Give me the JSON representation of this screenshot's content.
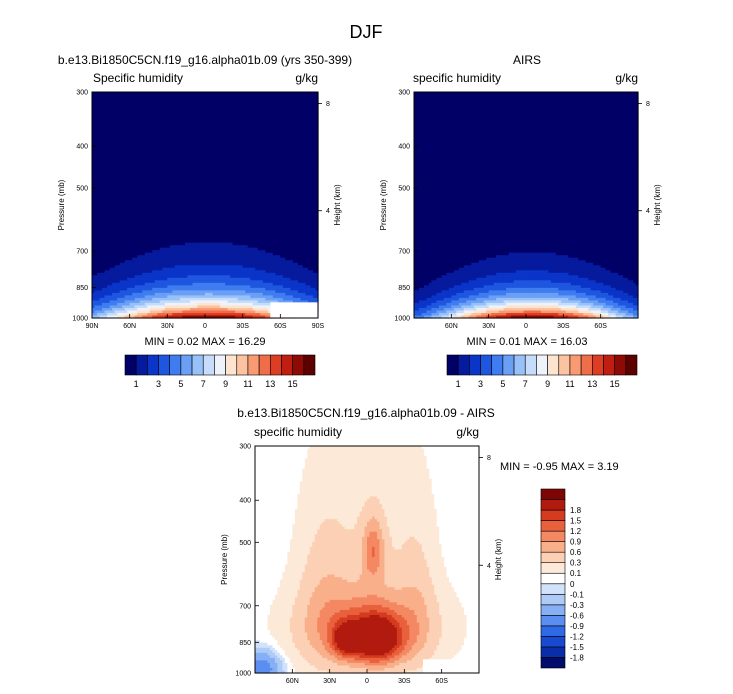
{
  "figure_title": "DJF",
  "panel_left": {
    "title": "b.e13.Bi1850C5CN.f19_g16.alpha01b.09 (yrs 350-399)",
    "left_label": "Specific humidity",
    "right_label": "g/kg",
    "stats": "MIN =  0.02  MAX = 16.29"
  },
  "panel_right": {
    "title": "AIRS",
    "left_label": "specific humidity",
    "right_label": "g/kg",
    "stats": "MIN =  0.01  MAX = 16.03"
  },
  "panel_bottom": {
    "title": "b.e13.Bi1850C5CN.f19_g16.alpha01b.09 - AIRS",
    "left_label": "specific humidity",
    "right_label": "g/kg",
    "stats": "MIN =  -0.95  MAX =  3.19"
  },
  "colors": {
    "abs_scale": [
      "#000066",
      "#061a9e",
      "#0a35c8",
      "#1f56e0",
      "#3f7cf0",
      "#6a9ff5",
      "#98c1f9",
      "#c6dcfb",
      "#eef3fb",
      "#fde4cf",
      "#fcc3a0",
      "#f99a72",
      "#ef6d48",
      "#dd3d22",
      "#bf1e10",
      "#8f0a05",
      "#5c0000"
    ],
    "diff_scale": [
      "#010c6b",
      "#0a2daa",
      "#1849d0",
      "#2f6ae6",
      "#5a8ef0",
      "#86aff5",
      "#aecbf8",
      "#d2e2fb",
      "#ffffff",
      "#fde9d8",
      "#fcd0b4",
      "#f9b08a",
      "#f48862",
      "#e9603c",
      "#d43b1f",
      "#b11a0e",
      "#7d0504"
    ]
  },
  "chart_data": [
    {
      "type": "heatmap",
      "name": "model",
      "title": "b.e13.Bi1850C5CN.f19_g16.alpha01b.09 (yrs 350-399)",
      "variable": "Specific humidity",
      "units": "g/kg",
      "ylabel": "Pressure (mb)",
      "y2label": "Height (km)",
      "x_ticks": [
        "90N",
        "60N",
        "30N",
        "0",
        "30S",
        "60S",
        "90S"
      ],
      "x_tick_values": [
        90,
        60,
        30,
        0,
        -30,
        -60,
        -90
      ],
      "xlim": [
        90,
        -90
      ],
      "y_ticks": [
        "300",
        "400",
        "500",
        "700",
        "850",
        "1000"
      ],
      "y_tick_values": [
        300,
        400,
        500,
        700,
        850,
        1000
      ],
      "ylim": [
        300,
        1000
      ],
      "height_ticks": [
        "8",
        "4"
      ],
      "height_tick_values": [
        8,
        4
      ],
      "colorbar_levels": [
        1,
        2,
        3,
        4,
        5,
        6,
        7,
        8,
        9,
        10,
        11,
        12,
        13,
        14,
        15,
        16
      ],
      "colorbar_labels": [
        "1",
        "3",
        "5",
        "7",
        "9",
        "11",
        "13",
        "15"
      ],
      "min": 0.02,
      "max": 16.29,
      "peak_lat": -3,
      "decay_p": 118,
      "width_lat": 32,
      "width_grow": 1.2,
      "missing_box": {
        "lat": [
          -52,
          -90
        ],
        "p": [
          920,
          1000
        ]
      }
    },
    {
      "type": "heatmap",
      "name": "obs",
      "title": "AIRS",
      "variable": "specific humidity",
      "units": "g/kg",
      "ylabel": "Pressure (mb)",
      "y2label": "Height (km)",
      "x_ticks": [
        "60N",
        "30N",
        "0",
        "30S",
        "60S"
      ],
      "x_tick_values": [
        60,
        30,
        0,
        -30,
        -60
      ],
      "xlim": [
        90,
        -90
      ],
      "y_ticks": [
        "300",
        "400",
        "500",
        "700",
        "850",
        "1000"
      ],
      "y_tick_values": [
        300,
        400,
        500,
        700,
        850,
        1000
      ],
      "ylim": [
        300,
        1000
      ],
      "height_ticks": [
        "8",
        "4"
      ],
      "height_tick_values": [
        8,
        4
      ],
      "colorbar_levels": [
        1,
        2,
        3,
        4,
        5,
        6,
        7,
        8,
        9,
        10,
        11,
        12,
        13,
        14,
        15,
        16
      ],
      "colorbar_labels": [
        "1",
        "3",
        "5",
        "7",
        "9",
        "11",
        "13",
        "15"
      ],
      "min": 0.01,
      "max": 16.03,
      "peak_lat": -5,
      "decay_p": 105,
      "width_lat": 30,
      "width_grow": 1.0,
      "missing_box": null
    },
    {
      "type": "heatmap",
      "name": "difference",
      "title": "b.e13.Bi1850C5CN.f19_g16.alpha01b.09 - AIRS",
      "variable": "specific humidity",
      "units": "g/kg",
      "ylabel": "Pressure (mb)",
      "y2label": "Height (km)",
      "x_ticks": [
        "60N",
        "30N",
        "0",
        "30S",
        "60S"
      ],
      "x_tick_values": [
        60,
        30,
        0,
        -30,
        -60
      ],
      "xlim": [
        90,
        -90
      ],
      "y_ticks": [
        "300",
        "400",
        "500",
        "700",
        "850",
        "1000"
      ],
      "y_tick_values": [
        300,
        400,
        500,
        700,
        850,
        1000
      ],
      "ylim": [
        300,
        1000
      ],
      "height_ticks": [
        "8",
        "4"
      ],
      "height_tick_values": [
        8,
        4
      ],
      "colorbar_levels": [
        -1.8,
        -1.5,
        -1.2,
        -0.9,
        -0.6,
        -0.3,
        -0.1,
        0,
        0.1,
        0.3,
        0.6,
        0.9,
        1.2,
        1.5,
        1.8
      ],
      "colorbar_labels": [
        "-1.8",
        "-1.5",
        "-1.2",
        "-0.9",
        "-0.6",
        "-0.3",
        "-0.1",
        "0",
        "0.1",
        "0.3",
        "0.6",
        "0.9",
        "1.2",
        "1.5",
        "1.8"
      ],
      "min": -0.95,
      "max": 3.19,
      "missing_box": {
        "lat": [
          -45,
          -90
        ],
        "p": [
          930,
          1000
        ]
      },
      "features": [
        {
          "lat": -8,
          "p": 840,
          "amp": 1.9,
          "wlat": 14,
          "wp": 75
        },
        {
          "lat": 17,
          "p": 840,
          "amp": 1.3,
          "wlat": 8,
          "wp": 55
        },
        {
          "lat": -5,
          "p": 520,
          "amp": 0.9,
          "wlat": 6,
          "wp": 60
        },
        {
          "lat": 0,
          "p": 790,
          "amp": 0.9,
          "wlat": 35,
          "wp": 110
        },
        {
          "lat": 35,
          "p": 700,
          "amp": 0.35,
          "wlat": 14,
          "wp": 200
        },
        {
          "lat": -40,
          "p": 700,
          "amp": 0.3,
          "wlat": 10,
          "wp": 190
        },
        {
          "lat": 0,
          "p": 600,
          "amp": 0.25,
          "wlat": 30,
          "wp": 250
        },
        {
          "lat": 85,
          "p": 980,
          "amp": -0.9,
          "wlat": 10,
          "wp": 60
        }
      ]
    }
  ]
}
